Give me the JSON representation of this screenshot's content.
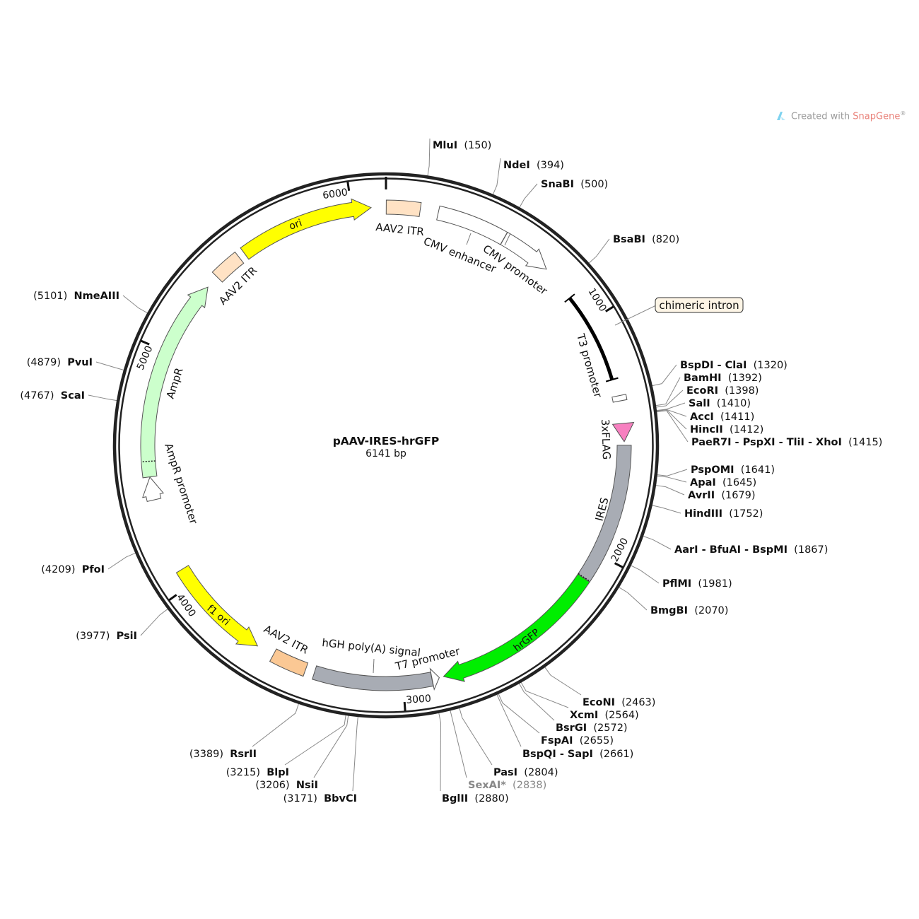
{
  "plasmid": {
    "name": "pAAV-IRES-hrGFP",
    "length_label": "6141 bp",
    "length": 6141
  },
  "watermark": {
    "prefix": "Created with ",
    "brand": "SnapGene",
    "mark": "®"
  },
  "ticks": [
    1000,
    2000,
    3000,
    4000,
    5000,
    6000
  ],
  "features": [
    {
      "label": "AAV2 ITR",
      "start": 1,
      "end": 141,
      "direction": "none",
      "color": "#ffe2c4"
    },
    {
      "label": "CMV enhancer",
      "start": 216,
      "end": 506,
      "direction": "none",
      "color": "#ffffff"
    },
    {
      "label": "CMV promoter",
      "start": 507,
      "end": 722,
      "direction": "forward",
      "color": "#ffffff"
    },
    {
      "label": "T3 promoter",
      "start": 875,
      "end": 1259,
      "direction": "line",
      "color": "#000000"
    },
    {
      "start": 1330,
      "end": 1352,
      "direction": "none",
      "color": "#ffffff"
    },
    {
      "label": "3xFLAG",
      "start": 1445,
      "end": 1520,
      "direction": "forward",
      "color": "#f780c0"
    },
    {
      "label": "IRES",
      "start": 1535,
      "end": 2113,
      "direction": "none",
      "color": "#a8acb4"
    },
    {
      "label": "hrGFP",
      "start": 2113,
      "end": 2832,
      "direction": "forward",
      "color": "#00ee00"
    },
    {
      "label": "T7 promoter",
      "start": 2850,
      "end": 2880,
      "direction": "reverse",
      "color": "#ffffff"
    },
    {
      "label": "hGH poly(A) signal",
      "start": 2881,
      "end": 3369,
      "direction": "none",
      "color": "#a8acb4"
    },
    {
      "label": "AAV2 ITR",
      "start": 3407,
      "end": 3553,
      "direction": "none",
      "color": "#fbc894"
    },
    {
      "label": "f1 ori",
      "start": 3627,
      "end": 4072,
      "direction": "reverse",
      "color": "#ffff00"
    },
    {
      "label": "AmpR promoter",
      "start": 4380,
      "end": 4475,
      "direction": "forward",
      "color": "#ffffff"
    },
    {
      "label": "AmpR",
      "start": 4476,
      "end": 5316,
      "direction": "forward",
      "color": "#ccffcc"
    },
    {
      "label": "AAV2 ITR",
      "start": 5372,
      "end": 5493,
      "direction": "none",
      "color": "#ffe2c4"
    },
    {
      "label": "ori",
      "start": 5520,
      "end": 6080,
      "direction": "forward",
      "color": "#ffff00"
    }
  ],
  "callout": {
    "label": "chimeric intron",
    "position": 1063
  },
  "sites": [
    {
      "name": "MluI",
      "position": 150
    },
    {
      "name": "NdeI",
      "position": 394
    },
    {
      "name": "SnaBI",
      "position": 500
    },
    {
      "name": "BsaBI",
      "position": 820
    },
    {
      "name": "BspDI - ClaI",
      "position": 1320
    },
    {
      "name": "BamHI",
      "position": 1392
    },
    {
      "name": "EcoRI",
      "position": 1398
    },
    {
      "name": "SalI",
      "position": 1410
    },
    {
      "name": "AccI",
      "position": 1411
    },
    {
      "name": "HincII",
      "position": 1412
    },
    {
      "name": "PaeR7I - PspXI - TliI - XhoI",
      "position": 1415
    },
    {
      "name": "PspOMI",
      "position": 1641
    },
    {
      "name": "ApaI",
      "position": 1645
    },
    {
      "name": "AvrII",
      "position": 1679
    },
    {
      "name": "HindIII",
      "position": 1752
    },
    {
      "name": "AarI - BfuAI - BspMI",
      "position": 1867
    },
    {
      "name": "PflMI",
      "position": 1981
    },
    {
      "name": "BmgBI",
      "position": 2070
    },
    {
      "name": "EcoNI",
      "position": 2463
    },
    {
      "name": "XcmI",
      "position": 2564
    },
    {
      "name": "BsrGI",
      "position": 2572
    },
    {
      "name": "FspAI",
      "position": 2655
    },
    {
      "name": "BspQI - SapI",
      "position": 2661
    },
    {
      "name": "PasI",
      "position": 2804
    },
    {
      "name": "SexAI*",
      "position": 2838,
      "muted": true
    },
    {
      "name": "BglII",
      "position": 2880
    },
    {
      "name": "BbvCI",
      "position": 3171
    },
    {
      "name": "NsiI",
      "position": 3206
    },
    {
      "name": "BlpI",
      "position": 3215
    },
    {
      "name": "RsrII",
      "position": 3389
    },
    {
      "name": "PsiI",
      "position": 3977
    },
    {
      "name": "PfoI",
      "position": 4209
    },
    {
      "name": "ScaI",
      "position": 4767
    },
    {
      "name": "PvuI",
      "position": 4879
    },
    {
      "name": "NmeAIII",
      "position": 5101
    }
  ]
}
